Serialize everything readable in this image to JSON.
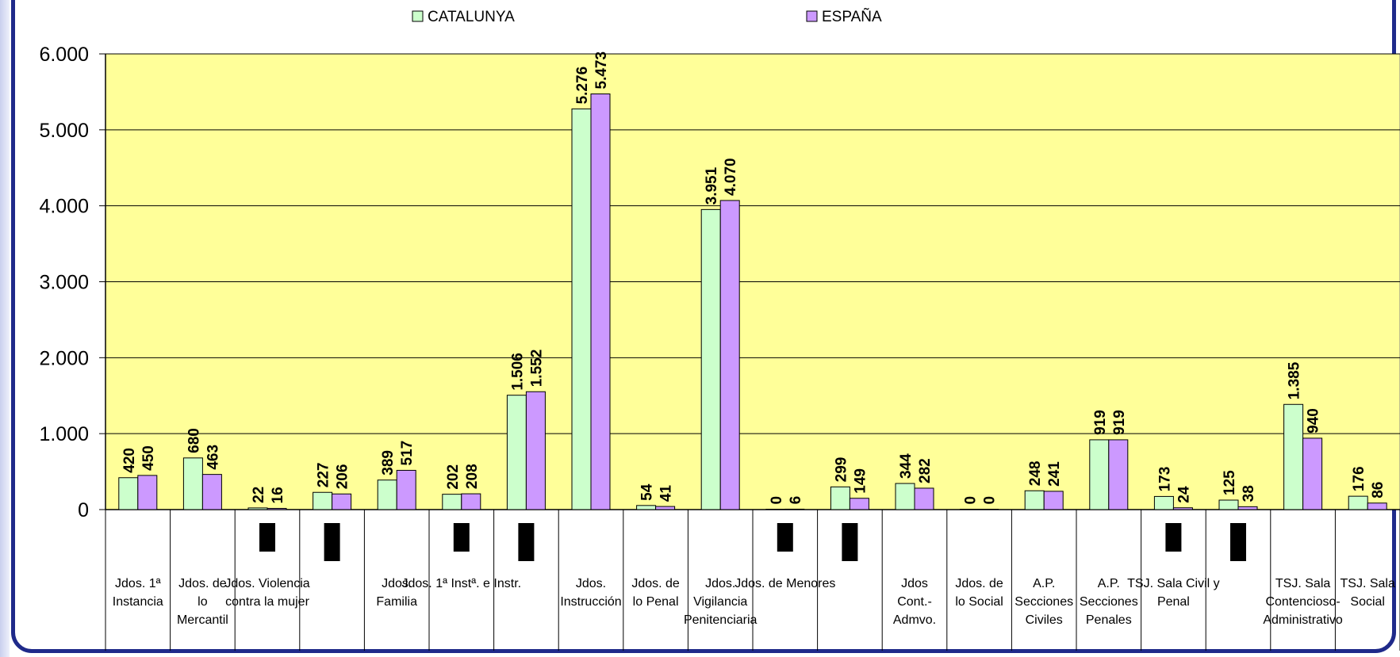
{
  "chart_data": {
    "type": "bar",
    "categories": [
      [
        "Jdos. 1ª",
        "Instancia"
      ],
      [
        "Jdos. de",
        "lo",
        "Mercantil"
      ],
      [
        "Jdos. Violencia",
        "contra la mujer"
      ],
      [],
      [
        "Jdos.",
        "Familia"
      ],
      [
        "Jdos. 1ª Instª. e Instr."
      ],
      [],
      [
        "Jdos.",
        "Instrucción"
      ],
      [
        "Jdos. de",
        "lo Penal"
      ],
      [
        "Jdos.",
        "Vigilancia",
        "Penitenciaria"
      ],
      [
        "Jdos. de Menores"
      ],
      [],
      [
        "Jdos",
        "Cont.-",
        "Admvo."
      ],
      [
        "Jdos. de",
        "lo Social"
      ],
      [
        "A.P.",
        "Secciones",
        "Civiles"
      ],
      [
        "A.P.",
        "Secciones",
        "Penales"
      ],
      [
        "TSJ. Sala Civil y",
        "Penal"
      ],
      [],
      [
        "TSJ. Sala",
        "Contencioso-",
        "Administrativo"
      ],
      [
        "TSJ. Sala",
        "Social"
      ]
    ],
    "series": [
      {
        "name": "CATALUNYA",
        "color": "#ccffcc",
        "values": [
          420,
          680,
          22,
          227,
          389,
          202,
          1506,
          5276,
          54,
          3951,
          0,
          299,
          344,
          0,
          248,
          919,
          173,
          125,
          1385,
          176
        ],
        "labels": [
          "420",
          "680",
          "22",
          "227",
          "389",
          "202",
          "1.506",
          "5.276",
          "54",
          "3.951",
          "0",
          "299",
          "344",
          "0",
          "248",
          "919",
          "173",
          "125",
          "1.385",
          "176"
        ]
      },
      {
        "name": "ESPAÑA",
        "color": "#cc99ff",
        "values": [
          450,
          463,
          16,
          206,
          517,
          208,
          1552,
          5473,
          41,
          4070,
          6,
          149,
          282,
          0,
          241,
          919,
          24,
          38,
          940,
          86
        ],
        "labels": [
          "450",
          "463",
          "16",
          "206",
          "517",
          "208",
          "1.552",
          "5.473",
          "41",
          "4.070",
          "6",
          "149",
          "282",
          "0",
          "241",
          "919",
          "24",
          "38",
          "940",
          "86"
        ]
      }
    ],
    "y_ticks": [
      "0",
      "1.000",
      "2.000",
      "3.000",
      "4.000",
      "5.000",
      "6.000"
    ],
    "ylim": [
      0,
      6000
    ],
    "grid": true,
    "legend_position": "top",
    "plot_background": "#ffff99",
    "title": "",
    "xlabel": "",
    "ylabel": ""
  }
}
